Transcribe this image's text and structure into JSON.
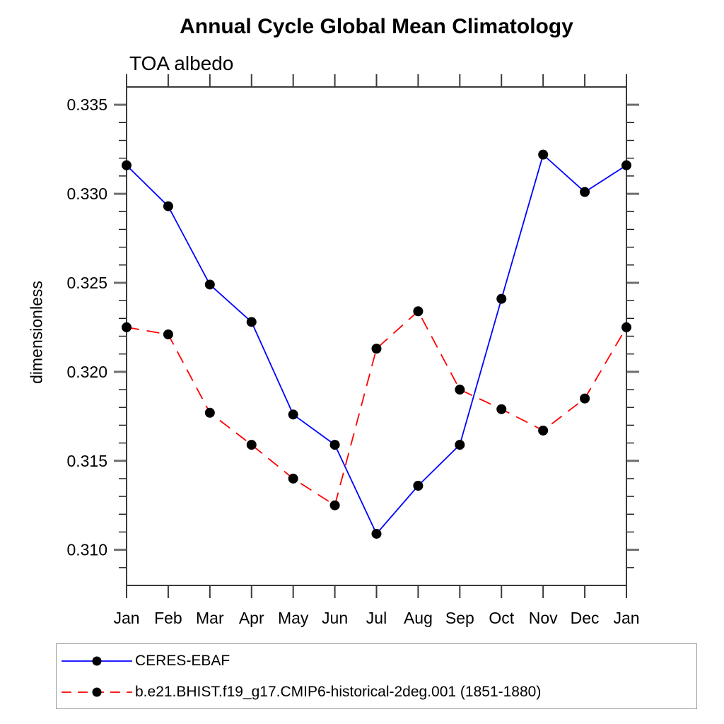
{
  "page": {
    "title": "Annual Cycle Global Mean Climatology",
    "subtitle": "TOA albedo"
  },
  "chart_data": {
    "type": "line",
    "title": "Annual Cycle Global Mean Climatology",
    "subtitle": "TOA albedo",
    "xlabel": "",
    "ylabel": "dimensionless",
    "categories": [
      "Jan",
      "Feb",
      "Mar",
      "Apr",
      "May",
      "Jun",
      "Jul",
      "Aug",
      "Sep",
      "Oct",
      "Nov",
      "Dec",
      "Jan"
    ],
    "ylim": [
      0.308,
      0.336
    ],
    "y_major_ticks": [
      0.31,
      0.315,
      0.32,
      0.325,
      0.33,
      0.335
    ],
    "y_minor_step": 0.001,
    "y_tick_label_decimals": 3,
    "grid": false,
    "legend_position": "bottom-left",
    "marker": {
      "shape": "circle",
      "color": "#000000",
      "radius": 7
    },
    "series": [
      {
        "name": "CERES-EBAF",
        "color": "#0000ff",
        "line_style": "solid",
        "values": [
          0.3316,
          0.3293,
          0.3249,
          0.3228,
          0.3176,
          0.3159,
          0.3109,
          0.3136,
          0.3159,
          0.3241,
          0.3322,
          0.3301,
          0.3316
        ]
      },
      {
        "name": "b.e21.BHIST.f19_g17.CMIP6-historical-2deg.001 (1851-1880)",
        "color": "#ff0000",
        "line_style": "dashed",
        "values": [
          0.3225,
          0.3221,
          0.3177,
          0.3159,
          0.314,
          0.3125,
          0.3213,
          0.3234,
          0.319,
          0.3179,
          0.3167,
          0.3185,
          0.3225
        ]
      }
    ]
  }
}
